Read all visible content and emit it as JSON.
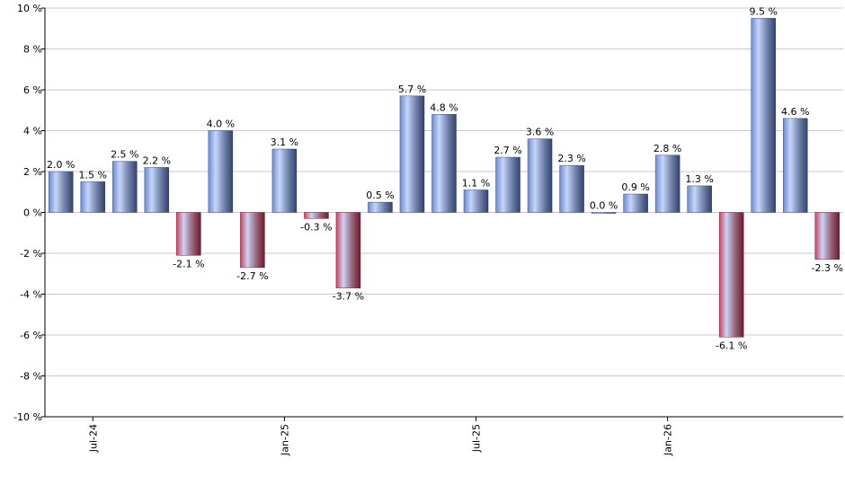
{
  "chart_data": {
    "type": "bar",
    "categories": [
      null,
      "Jul-24",
      null,
      null,
      null,
      null,
      null,
      "Jan-25",
      null,
      null,
      null,
      null,
      null,
      "Jul-25",
      null,
      null,
      null,
      null,
      null,
      "Jan-26",
      null,
      null,
      null,
      null,
      null
    ],
    "values": [
      2.0,
      1.5,
      2.5,
      2.2,
      -2.1,
      4.0,
      -2.7,
      3.1,
      -0.3,
      -3.7,
      0.5,
      5.7,
      4.8,
      1.1,
      2.7,
      3.6,
      2.3,
      0.0,
      0.9,
      2.8,
      1.3,
      -6.1,
      9.5,
      4.6,
      -2.3
    ],
    "value_labels": [
      "2.0 %",
      "1.5 %",
      "2.5 %",
      "2.2 %",
      "-2.1 %",
      "4.0 %",
      "-2.7 %",
      "3.1 %",
      "-0.3 %",
      "-3.7 %",
      "0.5 %",
      "5.7 %",
      "4.8 %",
      "1.1 %",
      "2.7 %",
      "3.6 %",
      "2.3 %",
      "0.0 %",
      "0.9 %",
      "2.8 %",
      "1.3 %",
      "-6.1 %",
      "9.5 %",
      "4.6 %",
      "-2.3 %"
    ],
    "color": "#6a8ad6",
    "negative_color": "#d0405e",
    "ylim": [
      -10,
      10
    ],
    "yticks": [
      {
        "value": -10,
        "label": "-10 %"
      },
      {
        "value": -8,
        "label": "-8 %"
      },
      {
        "value": -6,
        "label": "-6 %"
      },
      {
        "value": -4,
        "label": "-4 %"
      },
      {
        "value": -2,
        "label": "-2 %"
      },
      {
        "value": 0,
        "label": "0 %"
      },
      {
        "value": 2,
        "label": "2 %"
      },
      {
        "value": 4,
        "label": "4 %"
      },
      {
        "value": 6,
        "label": "6 %"
      },
      {
        "value": 8,
        "label": "8 %"
      },
      {
        "value": 10,
        "label": "10 %"
      }
    ],
    "grid": true
  }
}
